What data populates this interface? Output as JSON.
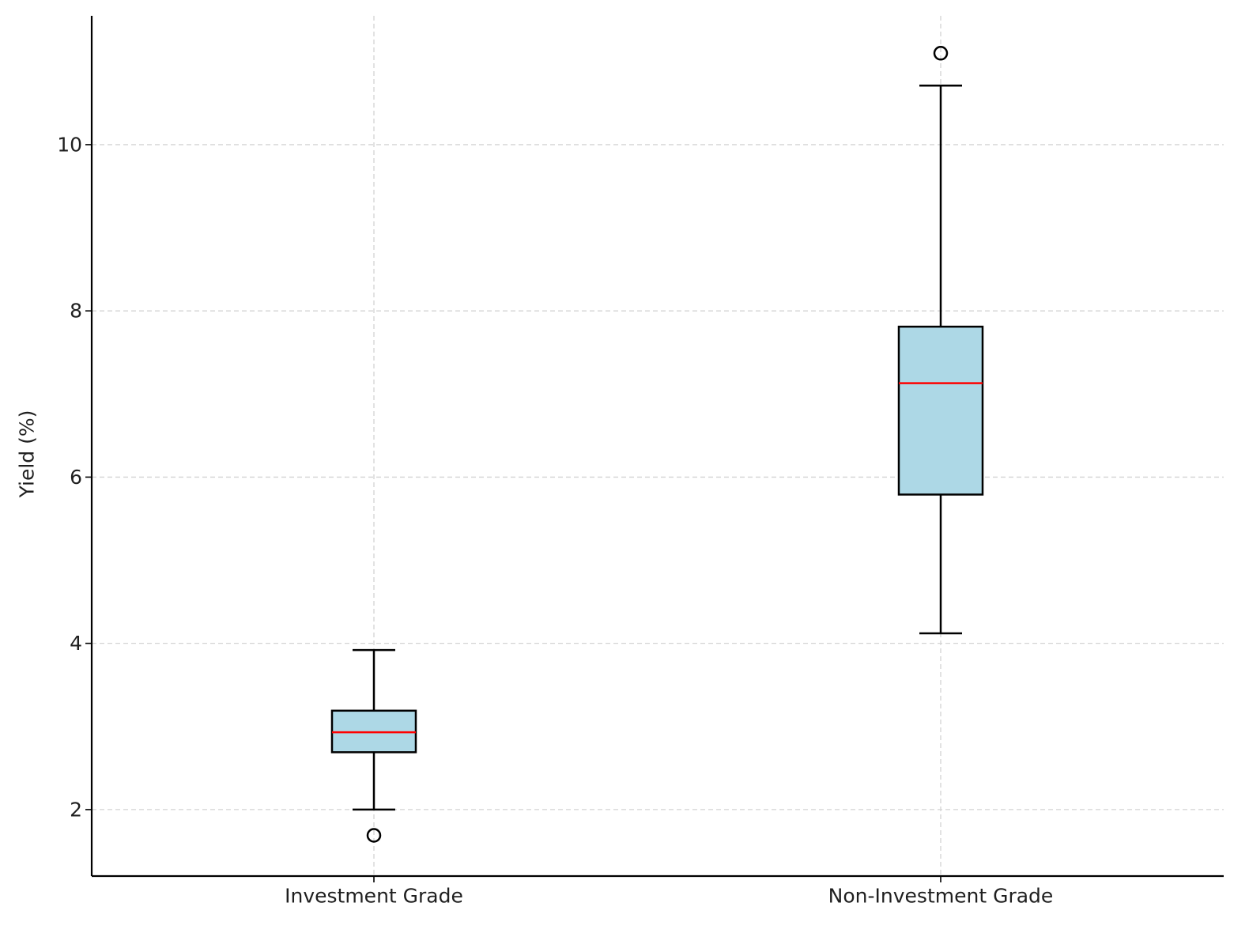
{
  "chart_data": {
    "type": "box",
    "title": "",
    "xlabel": "",
    "ylabel": "Yield (%)",
    "ylim": [
      1.2,
      11.55
    ],
    "yticks": [
      2,
      4,
      6,
      8,
      10
    ],
    "categories": [
      "Investment Grade",
      "Non-Investment Grade"
    ],
    "boxes": [
      {
        "category": "Investment Grade",
        "whisker_low": 2.0,
        "q1": 2.69,
        "median": 2.93,
        "q3": 3.19,
        "whisker_high": 3.92,
        "outliers": [
          1.69
        ]
      },
      {
        "category": "Non-Investment Grade",
        "whisker_low": 4.12,
        "q1": 5.79,
        "median": 7.13,
        "q3": 7.81,
        "whisker_high": 10.71,
        "outliers": [
          11.1
        ]
      }
    ],
    "grid": true,
    "colors": {
      "box_fill": "#add8e6",
      "box_edge": "#000000",
      "median": "#ff0000",
      "grid": "#d3d3d3",
      "axis": "#000000"
    }
  }
}
